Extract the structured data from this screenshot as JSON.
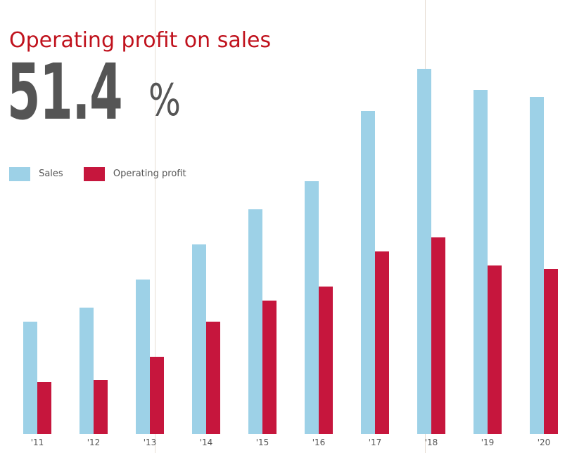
{
  "header": {
    "title": "Operating profit on sales",
    "kpi_value": "51.4",
    "kpi_unit": "%"
  },
  "colors": {
    "sales": "#9dd1e7",
    "operating_profit": "#c6163d",
    "title": "#c0121d",
    "kpi": "#555555",
    "guide_lines": "#e6ddd3"
  },
  "chart_data": {
    "type": "bar",
    "title": "Operating profit on sales",
    "xlabel": "",
    "ylabel": "",
    "ylim": [
      0,
      100
    ],
    "grid": false,
    "legend_position": "top-left",
    "categories": [
      "'11",
      "'12",
      "'13",
      "'14",
      "'15",
      "'16",
      "'17",
      "'18",
      "'19",
      "'20"
    ],
    "series": [
      {
        "name": "Sales",
        "color": "#9dd1e7",
        "values": [
          32,
          36,
          44,
          54,
          64,
          72,
          92,
          104,
          98,
          96
        ]
      },
      {
        "name": "Operating profit",
        "color": "#c6163d",
        "values": [
          14.8,
          15.4,
          22,
          32,
          38,
          42,
          52,
          56,
          48,
          47
        ]
      }
    ]
  }
}
